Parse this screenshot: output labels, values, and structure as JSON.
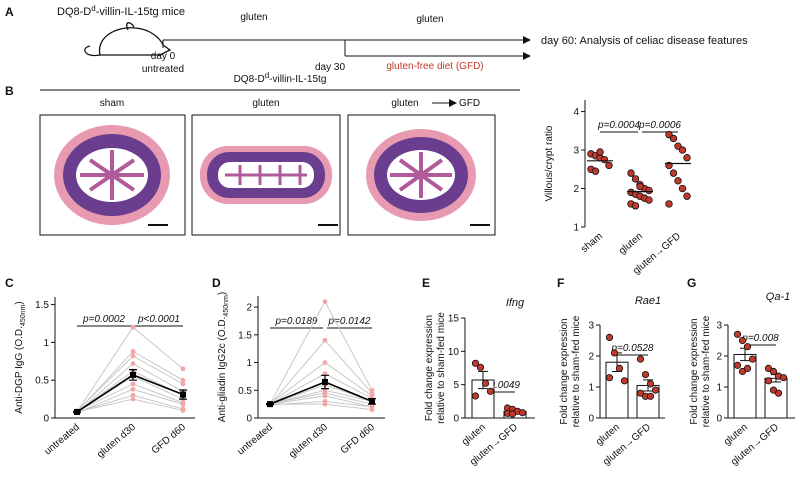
{
  "panel_labels": [
    "A",
    "B",
    "C",
    "D",
    "E",
    "F",
    "G"
  ],
  "diagram": {
    "mouse_title": [
      "DQ8-D",
      "d",
      "-villin-IL-15tg mice"
    ],
    "phase1": "gluten",
    "day0": "day 0",
    "untreated": "untreated",
    "day30": "day 30",
    "phase2": "gluten",
    "gfd": "gluten-free diet (GFD)",
    "day60": "day 60: Analysis of celiac disease features"
  },
  "histology": {
    "title": [
      "DQ8-D",
      "d",
      "-villin-IL-15tg"
    ],
    "labels": [
      "sham",
      "gluten",
      "gluten",
      "GFD"
    ]
  },
  "chart_data": [
    {
      "type": "scatter",
      "y_label": "Villous/crypt ratio",
      "categories": [
        "sham",
        "gluten",
        "gluten→GFD"
      ],
      "values": [
        [
          2.9,
          2.85,
          2.8,
          2.75,
          2.6,
          2.5,
          2.45,
          2.95
        ],
        [
          2.4,
          2.25,
          2.1,
          2.0,
          1.95,
          1.9,
          1.85,
          1.8,
          1.75,
          1.7,
          1.6,
          1.55,
          2.05
        ],
        [
          3.4,
          3.3,
          3.1,
          3.0,
          2.8,
          2.6,
          2.4,
          2.2,
          2.0,
          1.8,
          1.6
        ]
      ],
      "means": [
        2.72,
        1.92,
        2.65
      ],
      "ylim": [
        1,
        4.3
      ],
      "yticks": [
        1,
        2,
        3,
        4
      ],
      "color": "#c0392b",
      "annotations": [
        "p=0.0004",
        "p=0.0006"
      ]
    },
    {
      "type": "line",
      "y_label": {
        "text": "Anti-DGP IgG (O.D.",
        "subscript": "450nm",
        "end": ")"
      },
      "categories": [
        "untreated",
        "gluten d30",
        "GFD d60"
      ],
      "individuals": [
        [
          0.08,
          1.2,
          0.65
        ],
        [
          0.08,
          0.88,
          0.5
        ],
        [
          0.09,
          0.82,
          0.45
        ],
        [
          0.07,
          0.72,
          0.35
        ],
        [
          0.08,
          0.62,
          0.3
        ],
        [
          0.08,
          0.55,
          0.25
        ],
        [
          0.09,
          0.45,
          0.2
        ],
        [
          0.07,
          0.38,
          0.18
        ],
        [
          0.08,
          0.3,
          0.12
        ],
        [
          0.08,
          0.25,
          0.1
        ]
      ],
      "means": [
        0.08,
        0.57,
        0.31
      ],
      "errors": [
        0.01,
        0.07,
        0.06
      ],
      "ylim": [
        0,
        1.6
      ],
      "yticks": [
        0,
        0.5,
        1,
        1.5
      ],
      "line_color": "#c8c8c8",
      "point_color": "#f4a6a6",
      "color": "#000000",
      "annotations": [
        "p=0.0002",
        "p<0.0001"
      ]
    },
    {
      "type": "line",
      "y_label": {
        "text": "Anti-gliadin IgG2c (O.D.",
        "subscript": "450nm",
        "end": ")"
      },
      "categories": [
        "untreated",
        "gluten d30",
        "GFD d60"
      ],
      "individuals": [
        [
          0.25,
          2.1,
          0.5
        ],
        [
          0.24,
          1.4,
          0.45
        ],
        [
          0.26,
          1.0,
          0.4
        ],
        [
          0.25,
          0.8,
          0.35
        ],
        [
          0.24,
          0.6,
          0.3
        ],
        [
          0.25,
          0.5,
          0.3
        ],
        [
          0.26,
          0.45,
          0.25
        ],
        [
          0.25,
          0.4,
          0.2
        ],
        [
          0.24,
          0.3,
          0.2
        ],
        [
          0.25,
          0.25,
          0.15
        ]
      ],
      "means": [
        0.25,
        0.65,
        0.3
      ],
      "errors": [
        0.01,
        0.12,
        0.05
      ],
      "ylim": [
        0,
        2.2
      ],
      "yticks": [
        0,
        0.5,
        1,
        1.5,
        2
      ],
      "line_color": "#c8c8c8",
      "point_color": "#f4a6a6",
      "color": "#000000",
      "annotations": [
        "p=0.0189",
        "p=0.0142"
      ]
    },
    {
      "type": "bar",
      "title": "Ifng",
      "y_label": [
        "Fold change expression",
        "relative to sham-fed mice"
      ],
      "categories": [
        "gluten",
        "gluten→GFD"
      ],
      "values": [
        [
          8.2,
          7.6,
          5.2,
          4.0,
          3.3
        ],
        [
          1.5,
          1.3,
          1.0,
          0.8,
          0.7,
          0.6
        ]
      ],
      "means": [
        5.7,
        1.0
      ],
      "errors": [
        1.3,
        0.2
      ],
      "ylim": [
        0,
        15
      ],
      "yticks": [
        0,
        5,
        10,
        15
      ],
      "color": "#c0392b",
      "annotations": [
        "p=0.0049"
      ]
    },
    {
      "type": "bar",
      "title": "Rae1",
      "y_label": [
        "Fold change expression",
        "relative to sham-fed mice"
      ],
      "categories": [
        "gluten",
        "gluten→GFD"
      ],
      "values": [
        [
          2.6,
          2.1,
          1.6,
          1.2,
          1.3
        ],
        [
          1.9,
          1.4,
          1.1,
          0.9,
          0.8,
          0.7,
          0.7
        ]
      ],
      "means": [
        1.8,
        1.05
      ],
      "errors": [
        0.3,
        0.18
      ],
      "ylim": [
        0,
        3
      ],
      "yticks": [
        0,
        1,
        2,
        3
      ],
      "color": "#c0392b",
      "annotations": [
        "p=0.0528"
      ]
    },
    {
      "type": "bar",
      "title": "Qa-1",
      "y_label": [
        "Fold change expression",
        "relative to sham-fed mice"
      ],
      "categories": [
        "gluten",
        "gluten→GFD"
      ],
      "values": [
        [
          2.7,
          2.5,
          2.3,
          1.9,
          1.7,
          1.5,
          1.6
        ],
        [
          1.6,
          1.5,
          1.35,
          1.3,
          1.2,
          0.9,
          0.8
        ]
      ],
      "means": [
        2.05,
        1.28
      ],
      "errors": [
        0.2,
        0.12
      ],
      "ylim": [
        0,
        3
      ],
      "yticks": [
        0,
        1,
        2,
        3
      ],
      "color": "#c0392b",
      "annotations": [
        "p=0.008"
      ]
    }
  ]
}
